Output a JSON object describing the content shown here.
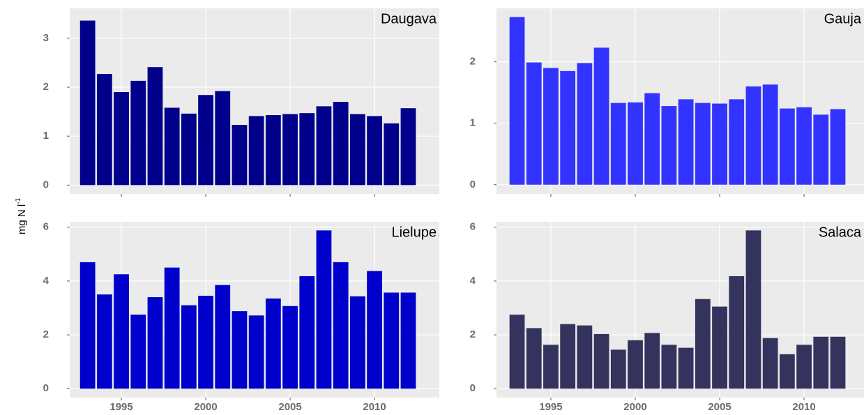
{
  "y_label": {
    "text": "mg N l",
    "superscript": "-1"
  },
  "chart_data": [
    {
      "type": "bar",
      "title": "Daugava",
      "color": "#00008b",
      "grid": true,
      "x": [
        1993,
        1994,
        1995,
        1996,
        1997,
        1998,
        1999,
        2000,
        2001,
        2002,
        2003,
        2004,
        2005,
        2006,
        2007,
        2008,
        2009,
        2010,
        2011,
        2012
      ],
      "values": [
        3.36,
        2.27,
        1.9,
        2.13,
        2.41,
        1.58,
        1.46,
        1.84,
        1.92,
        1.23,
        1.41,
        1.43,
        1.45,
        1.47,
        1.61,
        1.7,
        1.45,
        1.41,
        1.26,
        1.57
      ],
      "xlim": [
        1991.94,
        2013.84
      ],
      "xticks": [
        1995,
        2000,
        2005,
        2010
      ],
      "ylim": [
        -0.18,
        3.61
      ],
      "yticks": [
        0,
        1,
        2,
        3
      ]
    },
    {
      "type": "bar",
      "title": "Gauja",
      "color": "#3333ff",
      "grid": true,
      "x": [
        1993,
        1994,
        1995,
        1996,
        1997,
        1998,
        1999,
        2000,
        2001,
        2002,
        2003,
        2004,
        2005,
        2006,
        2007,
        2008,
        2009,
        2010,
        2011,
        2012
      ],
      "values": [
        2.73,
        1.99,
        1.9,
        1.85,
        1.98,
        2.23,
        1.33,
        1.34,
        1.49,
        1.28,
        1.39,
        1.33,
        1.32,
        1.39,
        1.6,
        1.63,
        1.24,
        1.26,
        1.14,
        1.23
      ],
      "xlim": [
        1991.78,
        2013.55
      ],
      "xticks": [
        1995,
        2000,
        2005,
        2010
      ],
      "ylim": [
        -0.15,
        2.87
      ],
      "yticks": [
        0,
        1,
        2
      ]
    },
    {
      "type": "bar",
      "title": "Lielupe",
      "color": "#0000cd",
      "grid": true,
      "x": [
        1993,
        1994,
        1995,
        1996,
        1997,
        1998,
        1999,
        2000,
        2001,
        2002,
        2003,
        2004,
        2005,
        2006,
        2007,
        2008,
        2009,
        2010,
        2011,
        2012
      ],
      "values": [
        4.7,
        3.5,
        4.25,
        2.75,
        3.4,
        4.5,
        3.1,
        3.45,
        3.85,
        2.88,
        2.72,
        3.35,
        3.07,
        4.18,
        5.88,
        4.7,
        3.43,
        4.37,
        3.57,
        3.57
      ],
      "xlim": [
        1991.94,
        2013.84
      ],
      "xticks": [
        1995,
        2000,
        2005,
        2010
      ],
      "ylim": [
        -0.33,
        6.2
      ],
      "yticks": [
        0,
        2,
        4,
        6
      ]
    },
    {
      "type": "bar",
      "title": "Salaca",
      "color": "#33335e",
      "grid": true,
      "x": [
        1993,
        1994,
        1995,
        1996,
        1997,
        1998,
        1999,
        2000,
        2001,
        2002,
        2003,
        2004,
        2005,
        2006,
        2007,
        2008,
        2009,
        2010,
        2011,
        2012
      ],
      "values": [
        2.75,
        2.25,
        1.63,
        2.4,
        2.35,
        2.03,
        1.45,
        1.8,
        2.07,
        1.63,
        1.52,
        3.33,
        3.05,
        4.18,
        5.88,
        1.88,
        1.28,
        1.63,
        1.93,
        1.93
      ],
      "xlim": [
        1991.78,
        2013.55
      ],
      "xticks": [
        1995,
        2000,
        2005,
        2010
      ],
      "ylim": [
        -0.33,
        6.2
      ],
      "yticks": [
        0,
        2,
        4,
        6
      ]
    }
  ]
}
